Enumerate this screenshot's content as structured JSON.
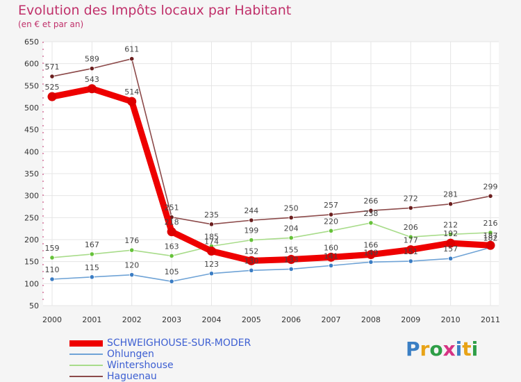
{
  "title": "Evolution des Impôts locaux par Habitant",
  "subtitle": "(en € et par an)",
  "logo_text": "Proxiti",
  "colors": {
    "title": "#c0306a",
    "legend_text": "#3d5fd2",
    "plot_bg": "#ffffff",
    "grid": "#e5e5e5"
  },
  "chart_data": {
    "type": "line",
    "title": "Evolution des Impôts locaux par Habitant",
    "subtitle": "(en € et par an)",
    "xlabel": "",
    "ylabel": "",
    "categories": [
      "2000",
      "2001",
      "2002",
      "2003",
      "2004",
      "2005",
      "2006",
      "2007",
      "2008",
      "2009",
      "2010",
      "2011"
    ],
    "ylim": [
      50,
      650
    ],
    "yticks": [
      50,
      100,
      150,
      200,
      250,
      300,
      350,
      400,
      450,
      500,
      550,
      600,
      650
    ],
    "grid": true,
    "series": [
      {
        "name": "SCHWEIGHOUSE-SUR-MODER",
        "color": "#ee0000",
        "marker_color": "#dd0000",
        "width": "thick",
        "values": [
          525,
          543,
          514,
          218,
          174,
          152,
          155,
          160,
          166,
          177,
          192,
          187
        ],
        "labels": [
          "525",
          "543",
          "514",
          "218",
          "174",
          "152",
          "155",
          "160",
          "166",
          "177",
          "192",
          "187"
        ]
      },
      {
        "name": "Ohlungen",
        "color": "#6fa3d6",
        "marker_color": "#3b7dc4",
        "width": "thin",
        "values": [
          110,
          115,
          120,
          105,
          123,
          130,
          133,
          141,
          149,
          151,
          157,
          182
        ],
        "labels": [
          "110",
          "115",
          "120",
          "105",
          "123",
          "130",
          "133",
          "141",
          "149",
          "151",
          "157",
          "182"
        ]
      },
      {
        "name": "Wintershouse",
        "color": "#a8dc8a",
        "marker_color": "#66c23a",
        "width": "thin",
        "values": [
          159,
          167,
          176,
          163,
          185,
          199,
          204,
          220,
          238,
          206,
          212,
          216
        ],
        "labels": [
          "159",
          "167",
          "176",
          "163",
          "185",
          "199",
          "204",
          "220",
          "238",
          "206",
          "212",
          "216"
        ]
      },
      {
        "name": "Haguenau",
        "color": "#8c4a4a",
        "marker_color": "#6b1f1f",
        "width": "thin",
        "values": [
          571,
          589,
          611,
          251,
          235,
          244,
          250,
          257,
          266,
          272,
          281,
          299
        ],
        "labels": [
          "571",
          "589",
          "611",
          "251",
          "235",
          "244",
          "250",
          "257",
          "266",
          "272",
          "281",
          "299"
        ]
      }
    ]
  }
}
